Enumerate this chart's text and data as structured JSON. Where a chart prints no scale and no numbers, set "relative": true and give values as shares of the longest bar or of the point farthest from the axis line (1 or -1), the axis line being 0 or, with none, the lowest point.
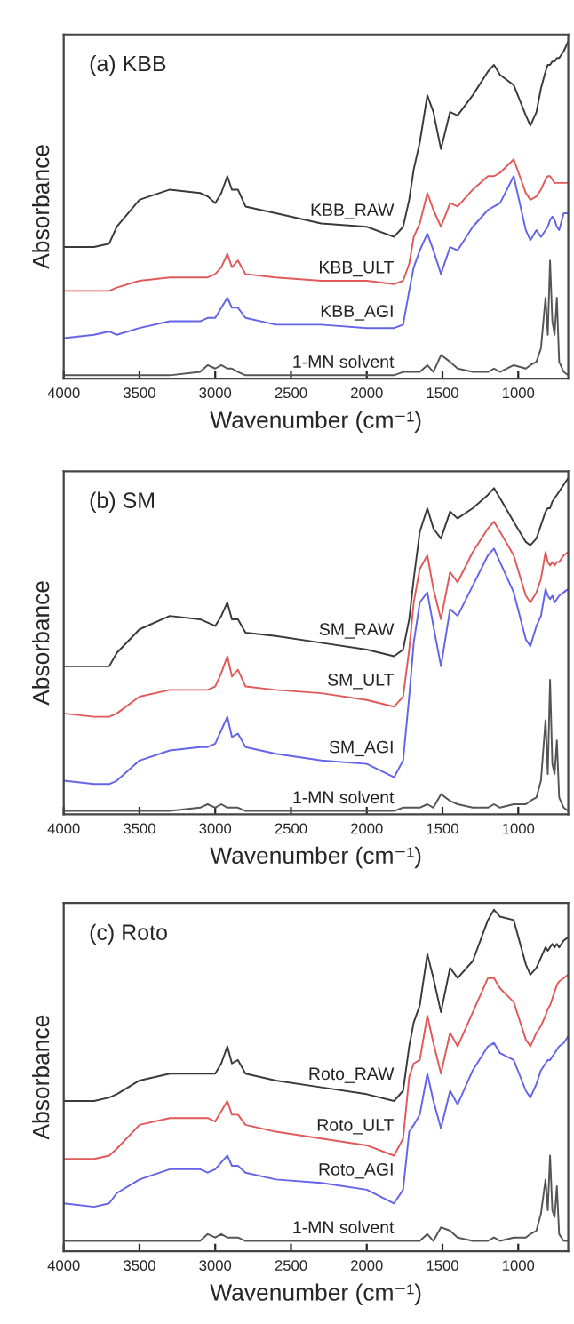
{
  "chart_data": [
    {
      "type": "line",
      "title": "(a) KBB",
      "xlabel": "Wavenumber (cm⁻¹)",
      "ylabel": "Absorbance",
      "relative": true,
      "tick_labels": "x",
      "xlim": [
        4000,
        670
      ],
      "xticks": [
        4000,
        3500,
        3000,
        2500,
        2000,
        1500,
        1000
      ],
      "x": [
        4000,
        3800,
        3700,
        3650,
        3500,
        3300,
        3100,
        3050,
        3000,
        2960,
        2920,
        2890,
        2850,
        2800,
        2600,
        2300,
        2000,
        1820,
        1760,
        1720,
        1690,
        1650,
        1600,
        1560,
        1510,
        1450,
        1400,
        1300,
        1200,
        1160,
        1120,
        1030,
        950,
        920,
        880,
        850,
        820,
        805,
        790,
        775,
        760,
        745,
        730,
        700,
        670
      ],
      "series": [
        {
          "name": "KBB_RAW",
          "color": "#3a3a3a",
          "values": [
            0.39,
            0.39,
            0.4,
            0.45,
            0.53,
            0.56,
            0.55,
            0.54,
            0.52,
            0.55,
            0.6,
            0.56,
            0.56,
            0.51,
            0.49,
            0.46,
            0.45,
            0.42,
            0.45,
            0.53,
            0.62,
            0.7,
            0.84,
            0.79,
            0.68,
            0.79,
            0.78,
            0.84,
            0.91,
            0.93,
            0.9,
            0.87,
            0.78,
            0.75,
            0.79,
            0.86,
            0.91,
            0.93,
            0.93,
            0.94,
            0.94,
            0.95,
            0.95,
            0.97,
            1.0
          ]
        },
        {
          "name": "KBB_ULT",
          "color": "#e05a5a",
          "values": [
            0.26,
            0.26,
            0.26,
            0.27,
            0.29,
            0.3,
            0.3,
            0.3,
            0.31,
            0.33,
            0.37,
            0.33,
            0.35,
            0.31,
            0.3,
            0.29,
            0.29,
            0.28,
            0.29,
            0.34,
            0.42,
            0.46,
            0.55,
            0.5,
            0.45,
            0.52,
            0.51,
            0.56,
            0.6,
            0.6,
            0.61,
            0.65,
            0.55,
            0.53,
            0.54,
            0.56,
            0.59,
            0.6,
            0.6,
            0.59,
            0.58,
            0.58,
            0.58,
            0.58,
            0.58
          ]
        },
        {
          "name": "KBB_AGI",
          "color": "#6464e8",
          "values": [
            0.12,
            0.13,
            0.14,
            0.13,
            0.15,
            0.17,
            0.17,
            0.18,
            0.18,
            0.21,
            0.24,
            0.21,
            0.21,
            0.18,
            0.16,
            0.16,
            0.15,
            0.15,
            0.16,
            0.26,
            0.33,
            0.38,
            0.43,
            0.38,
            0.31,
            0.39,
            0.38,
            0.45,
            0.5,
            0.51,
            0.52,
            0.6,
            0.44,
            0.41,
            0.44,
            0.42,
            0.44,
            0.45,
            0.47,
            0.48,
            0.47,
            0.45,
            0.44,
            0.49,
            0.49
          ]
        },
        {
          "name": "1-MN solvent",
          "color": "#555555",
          "values": [
            0.01,
            0.01,
            0.01,
            0.01,
            0.01,
            0.01,
            0.02,
            0.04,
            0.03,
            0.04,
            0.03,
            0.03,
            0.02,
            0.01,
            0.01,
            0.01,
            0.01,
            0.01,
            0.02,
            0.02,
            0.02,
            0.02,
            0.04,
            0.02,
            0.07,
            0.05,
            0.03,
            0.02,
            0.02,
            0.03,
            0.02,
            0.04,
            0.03,
            0.04,
            0.05,
            0.09,
            0.24,
            0.13,
            0.35,
            0.17,
            0.13,
            0.24,
            0.05,
            0.02,
            0.01
          ]
        }
      ]
    },
    {
      "type": "line",
      "title": "(b) SM",
      "xlabel": "Wavenumber (cm⁻¹)",
      "ylabel": "Absorbance",
      "relative": true,
      "tick_labels": "x",
      "xlim": [
        4000,
        670
      ],
      "xticks": [
        4000,
        3500,
        3000,
        2500,
        2000,
        1500,
        1000
      ],
      "x": [
        4000,
        3800,
        3700,
        3650,
        3500,
        3300,
        3100,
        3050,
        3000,
        2960,
        2920,
        2890,
        2850,
        2800,
        2600,
        2300,
        2000,
        1820,
        1760,
        1720,
        1690,
        1650,
        1600,
        1560,
        1510,
        1450,
        1400,
        1300,
        1200,
        1160,
        1120,
        1030,
        950,
        920,
        880,
        850,
        820,
        805,
        790,
        775,
        760,
        745,
        730,
        700,
        670
      ],
      "series": [
        {
          "name": "SM_RAW",
          "color": "#3a3a3a",
          "values": [
            0.44,
            0.44,
            0.44,
            0.48,
            0.55,
            0.59,
            0.58,
            0.57,
            0.56,
            0.59,
            0.63,
            0.58,
            0.58,
            0.54,
            0.53,
            0.51,
            0.49,
            0.47,
            0.49,
            0.58,
            0.7,
            0.84,
            0.91,
            0.85,
            0.82,
            0.9,
            0.88,
            0.91,
            0.95,
            0.97,
            0.94,
            0.87,
            0.81,
            0.8,
            0.82,
            0.86,
            0.9,
            0.91,
            0.91,
            0.93,
            0.94,
            0.95,
            0.96,
            0.98,
            1.0
          ]
        },
        {
          "name": "SM_ULT",
          "color": "#e05a5a",
          "values": [
            0.3,
            0.29,
            0.29,
            0.3,
            0.35,
            0.37,
            0.37,
            0.37,
            0.38,
            0.42,
            0.47,
            0.41,
            0.43,
            0.38,
            0.37,
            0.36,
            0.34,
            0.32,
            0.35,
            0.49,
            0.63,
            0.73,
            0.77,
            0.67,
            0.58,
            0.72,
            0.69,
            0.78,
            0.85,
            0.87,
            0.84,
            0.77,
            0.65,
            0.63,
            0.66,
            0.7,
            0.78,
            0.75,
            0.74,
            0.75,
            0.74,
            0.75,
            0.75,
            0.77,
            0.78
          ]
        },
        {
          "name": "SM_AGI",
          "color": "#6464e8",
          "values": [
            0.1,
            0.09,
            0.09,
            0.1,
            0.16,
            0.19,
            0.2,
            0.2,
            0.21,
            0.25,
            0.29,
            0.23,
            0.24,
            0.2,
            0.18,
            0.16,
            0.15,
            0.11,
            0.16,
            0.35,
            0.51,
            0.63,
            0.66,
            0.56,
            0.44,
            0.61,
            0.59,
            0.68,
            0.77,
            0.79,
            0.75,
            0.66,
            0.52,
            0.5,
            0.56,
            0.59,
            0.67,
            0.65,
            0.64,
            0.65,
            0.63,
            0.64,
            0.65,
            0.66,
            0.67
          ]
        },
        {
          "name": "1-MN solvent",
          "color": "#555555",
          "values": [
            0.01,
            0.01,
            0.01,
            0.01,
            0.01,
            0.01,
            0.02,
            0.03,
            0.02,
            0.03,
            0.02,
            0.02,
            0.02,
            0.01,
            0.01,
            0.01,
            0.01,
            0.01,
            0.02,
            0.02,
            0.02,
            0.02,
            0.03,
            0.02,
            0.06,
            0.04,
            0.03,
            0.02,
            0.02,
            0.03,
            0.02,
            0.03,
            0.03,
            0.04,
            0.05,
            0.1,
            0.28,
            0.12,
            0.4,
            0.15,
            0.12,
            0.22,
            0.05,
            0.02,
            0.01
          ]
        }
      ]
    },
    {
      "type": "line",
      "title": "(c) Roto",
      "xlabel": "Wavenumber (cm⁻¹)",
      "ylabel": "Absorbance",
      "relative": true,
      "tick_labels": "x",
      "xlim": [
        4000,
        670
      ],
      "xticks": [
        4000,
        3500,
        3000,
        2500,
        2000,
        1500,
        1000
      ],
      "x": [
        4000,
        3800,
        3700,
        3650,
        3500,
        3300,
        3100,
        3050,
        3000,
        2960,
        2920,
        2890,
        2850,
        2800,
        2600,
        2300,
        2000,
        1820,
        1760,
        1720,
        1690,
        1650,
        1600,
        1560,
        1510,
        1450,
        1400,
        1300,
        1200,
        1160,
        1120,
        1030,
        950,
        920,
        880,
        850,
        820,
        805,
        790,
        775,
        760,
        745,
        730,
        700,
        670
      ],
      "series": [
        {
          "name": "Roto_RAW",
          "color": "#3a3a3a",
          "values": [
            0.44,
            0.44,
            0.45,
            0.46,
            0.5,
            0.52,
            0.52,
            0.52,
            0.52,
            0.55,
            0.6,
            0.55,
            0.56,
            0.52,
            0.5,
            0.48,
            0.46,
            0.44,
            0.47,
            0.6,
            0.67,
            0.72,
            0.87,
            0.8,
            0.7,
            0.83,
            0.8,
            0.85,
            0.97,
            1.0,
            0.98,
            0.97,
            0.84,
            0.81,
            0.83,
            0.86,
            0.89,
            0.88,
            0.89,
            0.9,
            0.89,
            0.9,
            0.89,
            0.91,
            0.92
          ]
        },
        {
          "name": "Roto_ULT",
          "color": "#e05a5a",
          "values": [
            0.27,
            0.27,
            0.28,
            0.3,
            0.37,
            0.39,
            0.39,
            0.39,
            0.38,
            0.41,
            0.44,
            0.4,
            0.4,
            0.37,
            0.35,
            0.33,
            0.31,
            0.28,
            0.33,
            0.51,
            0.55,
            0.56,
            0.69,
            0.61,
            0.52,
            0.64,
            0.6,
            0.7,
            0.8,
            0.8,
            0.77,
            0.73,
            0.62,
            0.6,
            0.64,
            0.66,
            0.69,
            0.71,
            0.72,
            0.74,
            0.76,
            0.78,
            0.79,
            0.8,
            0.81
          ]
        },
        {
          "name": "Roto_AGI",
          "color": "#6464e8",
          "values": [
            0.14,
            0.13,
            0.14,
            0.17,
            0.21,
            0.24,
            0.24,
            0.23,
            0.24,
            0.26,
            0.28,
            0.25,
            0.25,
            0.23,
            0.21,
            0.2,
            0.18,
            0.14,
            0.18,
            0.35,
            0.37,
            0.4,
            0.52,
            0.44,
            0.36,
            0.47,
            0.43,
            0.53,
            0.6,
            0.61,
            0.58,
            0.56,
            0.47,
            0.45,
            0.49,
            0.53,
            0.55,
            0.56,
            0.56,
            0.57,
            0.58,
            0.59,
            0.6,
            0.61,
            0.63
          ]
        },
        {
          "name": "1-MN solvent",
          "color": "#555555",
          "values": [
            0.03,
            0.03,
            0.03,
            0.03,
            0.03,
            0.03,
            0.03,
            0.05,
            0.04,
            0.05,
            0.04,
            0.04,
            0.04,
            0.03,
            0.03,
            0.03,
            0.03,
            0.03,
            0.03,
            0.03,
            0.03,
            0.03,
            0.05,
            0.03,
            0.07,
            0.06,
            0.04,
            0.03,
            0.03,
            0.04,
            0.03,
            0.04,
            0.04,
            0.05,
            0.06,
            0.11,
            0.21,
            0.12,
            0.28,
            0.12,
            0.1,
            0.19,
            0.05,
            0.03,
            0.03
          ]
        }
      ]
    }
  ]
}
